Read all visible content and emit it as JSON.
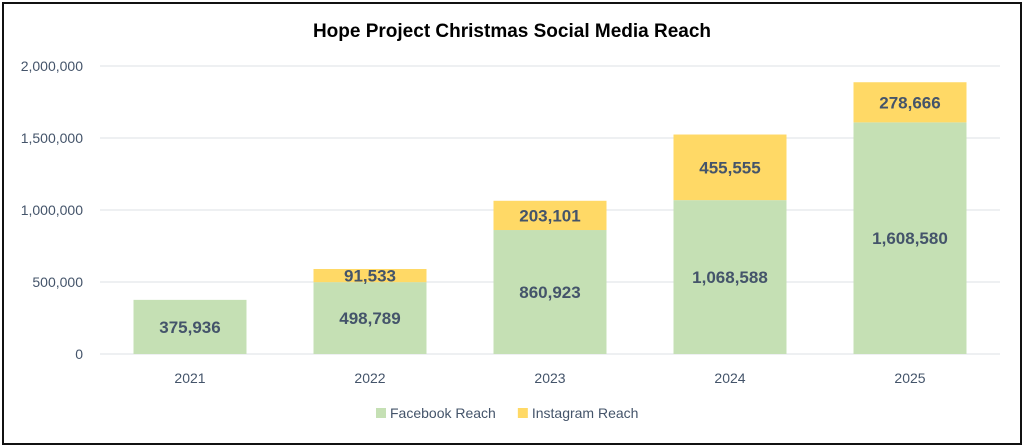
{
  "chart_data": {
    "type": "bar",
    "stacked": true,
    "title": "Hope Project Christmas Social Media Reach",
    "xlabel": "",
    "ylabel": "",
    "categories": [
      "2021",
      "2022",
      "2023",
      "2024",
      "2025"
    ],
    "series": [
      {
        "name": "Facebook Reach",
        "color": "#c5e0b4",
        "values": [
          375936,
          498789,
          860923,
          1068588,
          1608580
        ],
        "labels": [
          "375,936",
          "498,789",
          "860,923",
          "1,068,588",
          "1,608,580"
        ]
      },
      {
        "name": "Instagram Reach",
        "color": "#ffd966",
        "values": [
          null,
          91533,
          203101,
          455555,
          278666
        ],
        "labels": [
          "",
          "91,533",
          "203,101",
          "455,555",
          "278,666"
        ]
      }
    ],
    "ylim": [
      0,
      2000000
    ],
    "yticks": [
      0,
      500000,
      1000000,
      1500000,
      2000000
    ],
    "ytick_labels": [
      "0",
      "500,000",
      "1,000,000",
      "1,500,000",
      "2,000,000"
    ],
    "grid": true,
    "legend": "bottom",
    "text_color": "#44546a"
  }
}
